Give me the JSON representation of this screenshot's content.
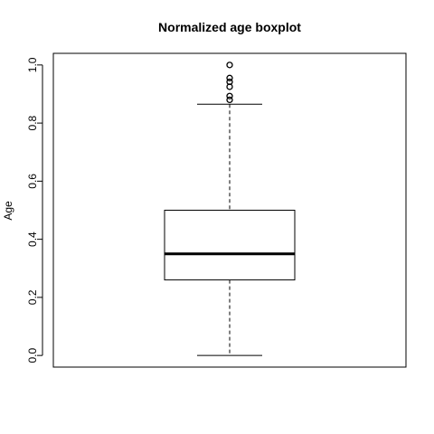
{
  "chart_data": {
    "type": "boxplot",
    "title": "Normalized age boxplot",
    "xlabel": "",
    "ylabel": "Age",
    "ylim": [
      -0.04,
      1.04
    ],
    "yticks": [
      0.0,
      0.2,
      0.4,
      0.6,
      0.8,
      1.0
    ],
    "ytick_labels": [
      "0.0",
      "0.2",
      "0.4",
      "0.6",
      "0.8",
      "1.0"
    ],
    "grid": false,
    "box": {
      "min_whisker": 0.0,
      "q1": 0.26,
      "median": 0.35,
      "q3": 0.5,
      "max_whisker": 0.865
    },
    "outliers": [
      0.88,
      0.893,
      0.925,
      0.942,
      0.955,
      1.0
    ]
  }
}
